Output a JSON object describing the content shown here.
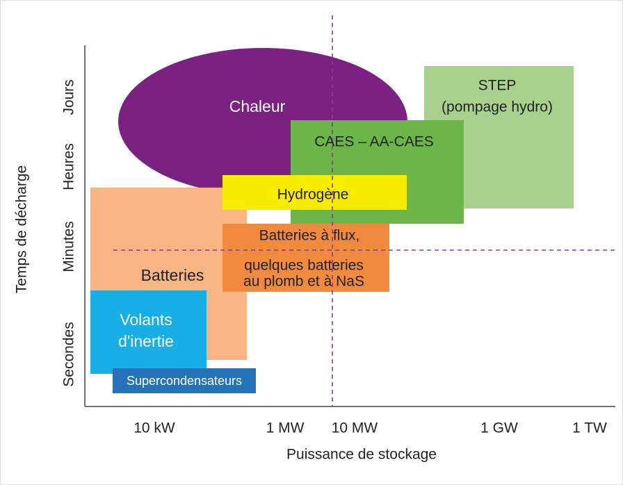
{
  "diagram": {
    "y_axis_title": "Temps de décharge",
    "x_axis_title": "Puissance de stockage",
    "y_labels": [
      "Jours",
      "Heures",
      "Minutes",
      "Secondes"
    ],
    "x_labels": [
      "10 kW",
      "1 MW",
      "10 MW",
      "1 GW",
      "1 TW"
    ],
    "regions": [
      {
        "lines": [
          "Chaleur"
        ]
      },
      {
        "lines": [
          "STEP",
          "(pompage hydro)"
        ]
      },
      {
        "lines": [
          "CAES – AA-CAES"
        ]
      },
      {
        "lines": [
          "Batteries"
        ]
      },
      {
        "lines": [
          "Hydrogène"
        ]
      },
      {
        "lines": [
          "Batteries à flux,",
          "quelques batteries",
          "au plomb et à NaS"
        ]
      },
      {
        "lines": [
          "Volants",
          "d'inertie"
        ]
      },
      {
        "lines": [
          "Supercondensateurs"
        ]
      }
    ]
  }
}
